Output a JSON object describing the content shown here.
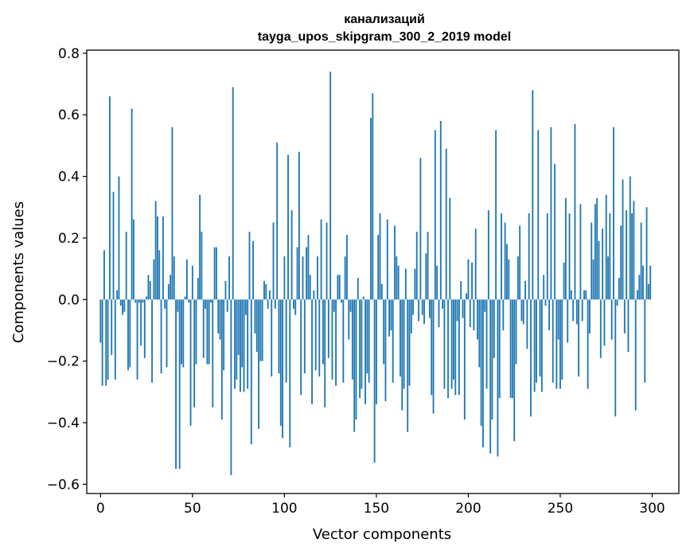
{
  "chart_data": {
    "type": "bar",
    "title": "канализаций",
    "subtitle": "tayga_upos_skipgram_300_2_2019 model",
    "xlabel": "Vector components",
    "ylabel": "Components values",
    "xlim": [
      -7.5,
      314.5
    ],
    "ylim": [
      -0.63,
      0.81
    ],
    "xticks": [
      0,
      50,
      100,
      150,
      200,
      250,
      300
    ],
    "xtick_labels": [
      "0",
      "50",
      "100",
      "150",
      "200",
      "250",
      "300"
    ],
    "yticks": [
      -0.6,
      -0.4,
      -0.2,
      0.0,
      0.2,
      0.4,
      0.6,
      0.8
    ],
    "ytick_labels": [
      "−0.6",
      "−0.4",
      "−0.2",
      "0.0",
      "0.2",
      "0.4",
      "0.6",
      "0.8"
    ],
    "bar_color": "#1f77b4",
    "grid": false,
    "values": [
      -0.14,
      -0.28,
      0.16,
      -0.28,
      -0.26,
      0.66,
      -0.18,
      0.35,
      -0.26,
      0.03,
      0.4,
      -0.02,
      -0.05,
      -0.04,
      0.22,
      -0.23,
      -0.22,
      0.62,
      0.26,
      -0.01,
      -0.26,
      -0.01,
      -0.15,
      -0.01,
      -0.19,
      0.01,
      0.08,
      0.06,
      -0.27,
      0.13,
      0.32,
      0.27,
      0.16,
      -0.24,
      0.27,
      -0.03,
      -0.22,
      0.05,
      0.08,
      0.56,
      0.14,
      -0.55,
      -0.04,
      -0.55,
      -0.21,
      -0.22,
      0.01,
      0.13,
      -0.01,
      -0.41,
      0.11,
      -0.35,
      -0.21,
      0.07,
      0.34,
      0.22,
      -0.19,
      -0.03,
      -0.21,
      -0.21,
      -0.01,
      -0.35,
      0.17,
      0.17,
      -0.11,
      -0.13,
      -0.39,
      -0.23,
      0.06,
      -0.04,
      0.14,
      -0.57,
      0.69,
      -0.29,
      -0.26,
      -0.18,
      -0.3,
      -0.22,
      -0.3,
      -0.05,
      -0.29,
      0.22,
      -0.47,
      0.19,
      -0.11,
      -0.17,
      -0.42,
      -0.2,
      -0.2,
      0.06,
      0.05,
      -0.03,
      0.03,
      -0.25,
      0.25,
      -0.03,
      0.51,
      -0.24,
      -0.41,
      -0.45,
      0.14,
      -0.27,
      0.47,
      -0.48,
      0.29,
      -0.03,
      -0.05,
      0.17,
      0.48,
      -0.31,
      0.14,
      -0.24,
      0.17,
      0.21,
      0.08,
      -0.34,
      0.03,
      -0.23,
      0.14,
      -0.25,
      0.26,
      -0.21,
      -0.35,
      0.25,
      -0.19,
      0.74,
      -0.26,
      -0.04,
      -0.28,
      0.08,
      0.08,
      -0.01,
      -0.27,
      0.14,
      0.21,
      -0.13,
      -0.04,
      -0.26,
      -0.43,
      -0.39,
      0.07,
      -0.32,
      -0.29,
      0.01,
      -0.34,
      -0.24,
      -0.27,
      0.59,
      0.67,
      -0.53,
      -0.34,
      0.21,
      0.28,
      0.05,
      -0.21,
      -0.33,
      0.26,
      -0.12,
      -0.1,
      -0.27,
      0.24,
      0.14,
      0.11,
      -0.25,
      -0.36,
      -0.29,
      0.1,
      -0.43,
      -0.28,
      -0.11,
      -0.05,
      0.1,
      0.22,
      -0.07,
      0.46,
      -0.05,
      -0.08,
      0.15,
      0.22,
      -0.06,
      -0.31,
      -0.37,
      0.55,
      0.11,
      -0.09,
      0.58,
      -0.03,
      -0.29,
      0.49,
      -0.32,
      0.33,
      -0.29,
      -0.26,
      -0.31,
      -0.07,
      -0.31,
      0.06,
      -0.06,
      -0.39,
      0.02,
      0.13,
      -0.09,
      0.12,
      -0.1,
      0.23,
      -0.13,
      -0.22,
      -0.41,
      -0.48,
      -0.04,
      -0.29,
      0.29,
      -0.5,
      -0.39,
      -0.19,
      0.55,
      -0.51,
      -0.32,
      0.28,
      -0.1,
      0.25,
      0.18,
      0.13,
      -0.32,
      -0.32,
      -0.46,
      -0.21,
      0.14,
      0.24,
      -0.07,
      -0.08,
      0.06,
      -0.16,
      0.28,
      -0.38,
      0.68,
      -0.3,
      -0.27,
      0.55,
      -0.25,
      -0.3,
      0.08,
      -0.02,
      0.28,
      -0.1,
      0.56,
      -0.27,
      0.44,
      -0.29,
      -0.13,
      -0.29,
      -0.26,
      0.12,
      0.33,
      -0.14,
      0.28,
      0.03,
      -0.07,
      0.57,
      -0.08,
      -0.25,
      0.31,
      -0.07,
      0.03,
      0.03,
      -0.29,
      -0.11,
      0.25,
      0.13,
      0.31,
      0.33,
      0.19,
      -0.19,
      0.23,
      -0.15,
      0.34,
      0.14,
      0.28,
      -0.13,
      0.56,
      -0.38,
      -0.02,
      0.07,
      0.24,
      0.39,
      -0.11,
      0.29,
      -0.17,
      0.4,
      0.28,
      0.32,
      -0.36,
      0.03,
      0.08,
      0.25,
      0.11,
      -0.27,
      0.3,
      0.05,
      0.11
    ]
  }
}
